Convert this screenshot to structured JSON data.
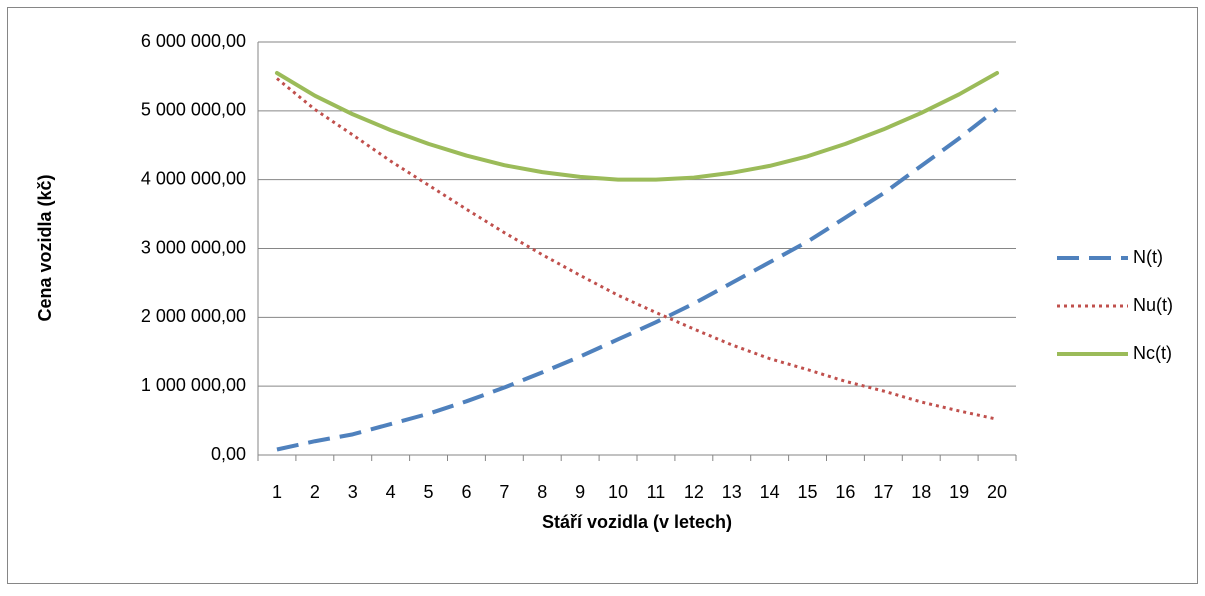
{
  "chart_data": {
    "type": "line",
    "xlabel": "Stáří vozidla (v letech)",
    "ylabel": "Cena vozidla (kč)",
    "categories": [
      "1",
      "2",
      "3",
      "4",
      "5",
      "6",
      "7",
      "8",
      "9",
      "10",
      "11",
      "12",
      "13",
      "14",
      "15",
      "16",
      "17",
      "18",
      "19",
      "20"
    ],
    "series": [
      {
        "name": "N(t)",
        "color": "#4f81bd",
        "dash": "dashed",
        "values": [
          80000,
          200000,
          300000,
          450000,
          600000,
          780000,
          980000,
          1200000,
          1430000,
          1680000,
          1930000,
          2200000,
          2500000,
          2800000,
          3100000,
          3450000,
          3800000,
          4200000,
          4600000,
          5030000
        ]
      },
      {
        "name": "Nu(t)",
        "color": "#c0504d",
        "dash": "dotted",
        "values": [
          5470000,
          5020000,
          4650000,
          4270000,
          3920000,
          3570000,
          3230000,
          2910000,
          2610000,
          2320000,
          2070000,
          1830000,
          1600000,
          1400000,
          1240000,
          1070000,
          930000,
          770000,
          640000,
          520000
        ]
      },
      {
        "name": "Nc(t)",
        "color": "#9bbb59",
        "dash": "solid",
        "values": [
          5550000,
          5220000,
          4950000,
          4720000,
          4520000,
          4350000,
          4210000,
          4110000,
          4040000,
          4000000,
          4000000,
          4030000,
          4100000,
          4200000,
          4340000,
          4520000,
          4730000,
          4970000,
          5240000,
          5550000
        ]
      }
    ],
    "ylim": [
      0,
      6000000
    ],
    "yticks": [
      {
        "value": 0,
        "label": "0,00"
      },
      {
        "value": 1000000,
        "label": "1 000 000,00"
      },
      {
        "value": 2000000,
        "label": "2 000 000,00"
      },
      {
        "value": 3000000,
        "label": "3 000 000,00"
      },
      {
        "value": 4000000,
        "label": "4 000 000,00"
      },
      {
        "value": 5000000,
        "label": "5 000 000,00"
      },
      {
        "value": 6000000,
        "label": "6 000 000,00"
      }
    ],
    "grid": true,
    "legend": "right"
  }
}
